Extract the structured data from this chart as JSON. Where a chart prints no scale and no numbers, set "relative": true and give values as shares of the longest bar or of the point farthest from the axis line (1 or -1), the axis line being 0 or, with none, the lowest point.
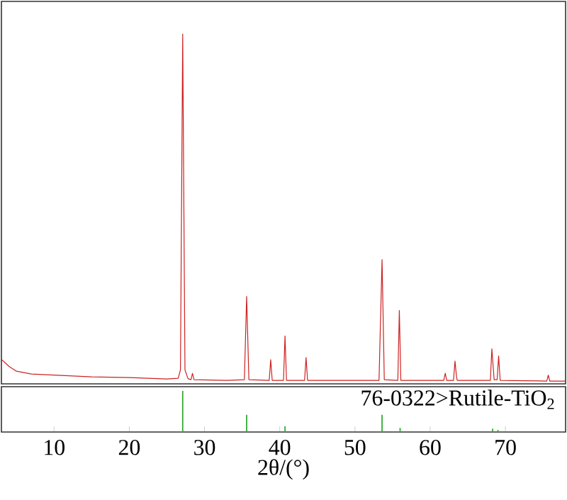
{
  "chart_data": [
    {
      "type": "line",
      "relative": true,
      "color": "#cc2222",
      "xlim": [
        3,
        78
      ],
      "tick_labels": false,
      "x": [
        3.0,
        4,
        5,
        7,
        10,
        15,
        20,
        25,
        26.5,
        26.8,
        27.1,
        27.4,
        27.8,
        28.2,
        28.4,
        28.6,
        33,
        35.3,
        35.6,
        35.9,
        38.6,
        38.8,
        39.0,
        40.5,
        40.7,
        40.9,
        43.3,
        43.5,
        43.7,
        53.2,
        53.6,
        53.9,
        55.7,
        55.9,
        56.1,
        61.8,
        62.0,
        62.2,
        63.1,
        63.3,
        63.5,
        63.6,
        68.0,
        68.2,
        68.5,
        68.9,
        69.1,
        69.3,
        75.5,
        75.7,
        75.9,
        78
      ],
      "values": [
        0.07,
        0.05,
        0.036,
        0.028,
        0.025,
        0.02,
        0.018,
        0.014,
        0.016,
        0.04,
        1.0,
        0.04,
        0.015,
        0.012,
        0.03,
        0.012,
        0.01,
        0.012,
        0.25,
        0.012,
        0.01,
        0.069,
        0.01,
        0.01,
        0.137,
        0.01,
        0.01,
        0.075,
        0.01,
        0.01,
        0.355,
        0.012,
        0.01,
        0.21,
        0.01,
        0.01,
        0.03,
        0.01,
        0.01,
        0.065,
        0.02,
        0.01,
        0.01,
        0.1,
        0.012,
        0.012,
        0.08,
        0.01,
        0.008,
        0.025,
        0.008,
        0.008
      ]
    },
    {
      "type": "bar",
      "relative": true,
      "color": "#33aa33",
      "xlim": [
        3,
        78
      ],
      "xticks": [
        10,
        20,
        30,
        40,
        50,
        60,
        70
      ],
      "tick_labels": "x",
      "x": [
        27.1,
        35.6,
        40.7,
        53.6,
        56.0,
        68.3,
        69.0
      ],
      "values": [
        1,
        0.42,
        0.14,
        0.42,
        0.1,
        0.08,
        0.05
      ],
      "xlabel": "2θ/(°)",
      "annotations": [
        "76-0322>Rutile-TiO$_{2}$"
      ]
    }
  ]
}
